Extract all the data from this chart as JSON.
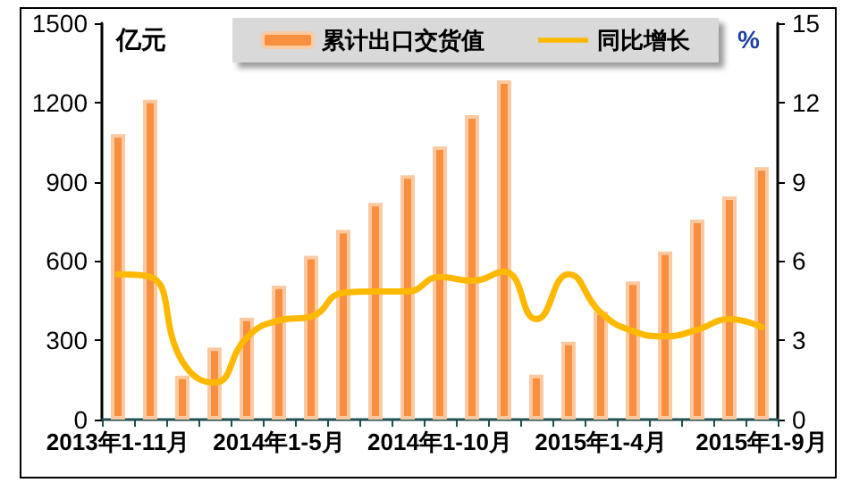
{
  "chart_data": {
    "type": "bar",
    "ylabel": "亿元",
    "y2label": "%",
    "categories": [
      "2013年1-11月",
      null,
      null,
      null,
      null,
      "2014年1-5月",
      null,
      null,
      null,
      null,
      "2014年1-10月",
      null,
      null,
      null,
      null,
      "2015年1-4月",
      null,
      null,
      null,
      null,
      "2015年1-9月"
    ],
    "series": [
      {
        "name": "累计出口交货值",
        "color": "#f78f3f",
        "values": [
          1080,
          1210,
          166,
          273,
          386,
          507,
          620,
          718,
          820,
          925,
          1034,
          1152,
          1284,
          170,
          295,
          409,
          523,
          636,
          757,
          845,
          955
        ]
      },
      {
        "name": "同比增长",
        "type": "line",
        "axis": "y2",
        "color": "#ffb800",
        "marker": "none",
        "values": [
          5.5,
          5.4,
          2.2,
          1.4,
          3.1,
          3.75,
          3.9,
          4.8,
          4.85,
          4.85,
          5.4,
          5.25,
          5.6,
          3.8,
          5.5,
          4.05,
          3.35,
          3.15,
          3.4,
          3.8,
          3.5
        ]
      }
    ],
    "ylim": [
      0,
      1500
    ],
    "yticks": [
      0,
      300,
      600,
      900,
      1200,
      1500
    ],
    "y2lim": [
      0,
      15
    ],
    "y2ticks": [
      0,
      3,
      6,
      9,
      12,
      15
    ],
    "grid": false,
    "legend": "top"
  }
}
